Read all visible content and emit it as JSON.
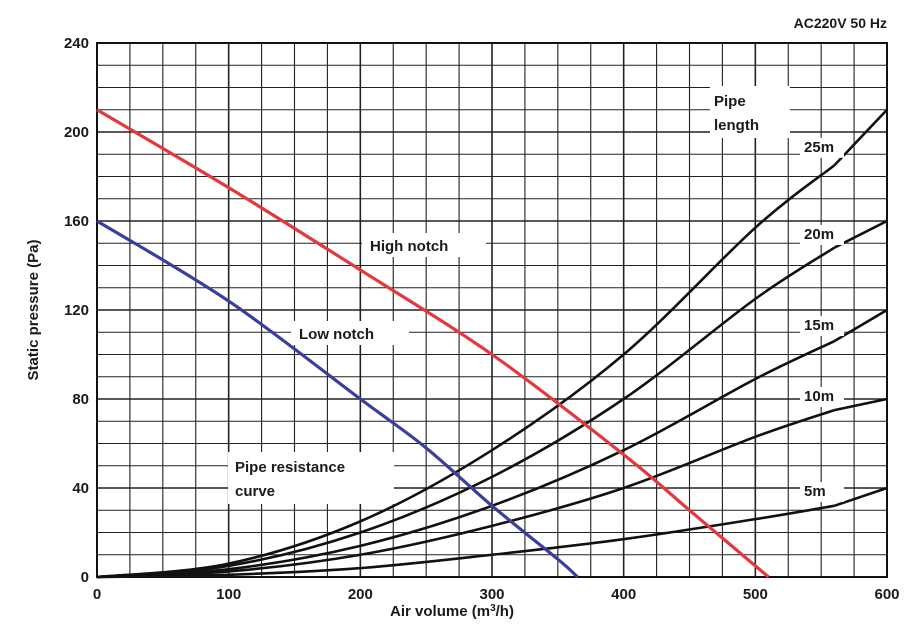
{
  "chart_data": {
    "type": "line",
    "condition_label": "AC220V 50 Hz",
    "xlabel_prefix": "Air volume (m",
    "xlabel_sup": "3",
    "xlabel_suffix": "/h)",
    "ylabel": "Static pressure (Pa)",
    "xlim": [
      0,
      600
    ],
    "ylim": [
      0,
      240
    ],
    "x_ticks": [
      0,
      100,
      200,
      300,
      400,
      500,
      600
    ],
    "y_ticks": [
      0,
      40,
      80,
      120,
      160,
      200,
      240
    ],
    "grid": true,
    "x_minor_step": 25,
    "y_minor_step": 10,
    "fan_curves": [
      {
        "name": "High notch",
        "color": "#e03a3e",
        "x": [
          0,
          100,
          200,
          300,
          400,
          450,
          510
        ],
        "y": [
          210,
          175,
          138,
          100,
          55,
          30,
          0
        ]
      },
      {
        "name": "Low notch",
        "color": "#3a3f99",
        "x": [
          0,
          100,
          200,
          250,
          300,
          350,
          365
        ],
        "y": [
          160,
          124,
          80,
          58,
          32,
          8,
          0
        ]
      }
    ],
    "pipe_curves_title_line1": "Pipe",
    "pipe_curves_title_line2": "length",
    "pipe_resistance_label_line1": "Pipe resistance",
    "pipe_resistance_label_line2": "curve",
    "pipe_curves": [
      {
        "name": "25m",
        "color": "#111111",
        "x": [
          0,
          100,
          200,
          300,
          400,
          500,
          560
        ],
        "y": [
          0,
          6,
          25,
          57,
          100,
          157,
          185
        ]
      },
      {
        "name": "20m",
        "color": "#111111",
        "x": [
          0,
          100,
          200,
          300,
          400,
          500,
          560
        ],
        "y": [
          0,
          5,
          20,
          45,
          80,
          125,
          148
        ]
      },
      {
        "name": "15m",
        "color": "#111111",
        "x": [
          0,
          100,
          200,
          300,
          400,
          500,
          560
        ],
        "y": [
          0,
          3.5,
          14,
          32,
          57,
          89,
          106
        ]
      },
      {
        "name": "10m",
        "color": "#111111",
        "x": [
          0,
          100,
          200,
          300,
          400,
          500,
          560
        ],
        "y": [
          0,
          2.5,
          10,
          23,
          40,
          63,
          75
        ]
      },
      {
        "name": "5m",
        "color": "#111111",
        "x": [
          0,
          100,
          200,
          300,
          400,
          500,
          560
        ],
        "y": [
          0,
          1,
          4,
          10,
          17,
          26,
          32
        ]
      }
    ],
    "pipe_extension": {
      "x": [
        560,
        600
      ],
      "labels": [
        "25m",
        "20m",
        "15m",
        "10m",
        "5m"
      ],
      "y_end": [
        210,
        160,
        120,
        80,
        40
      ]
    }
  }
}
